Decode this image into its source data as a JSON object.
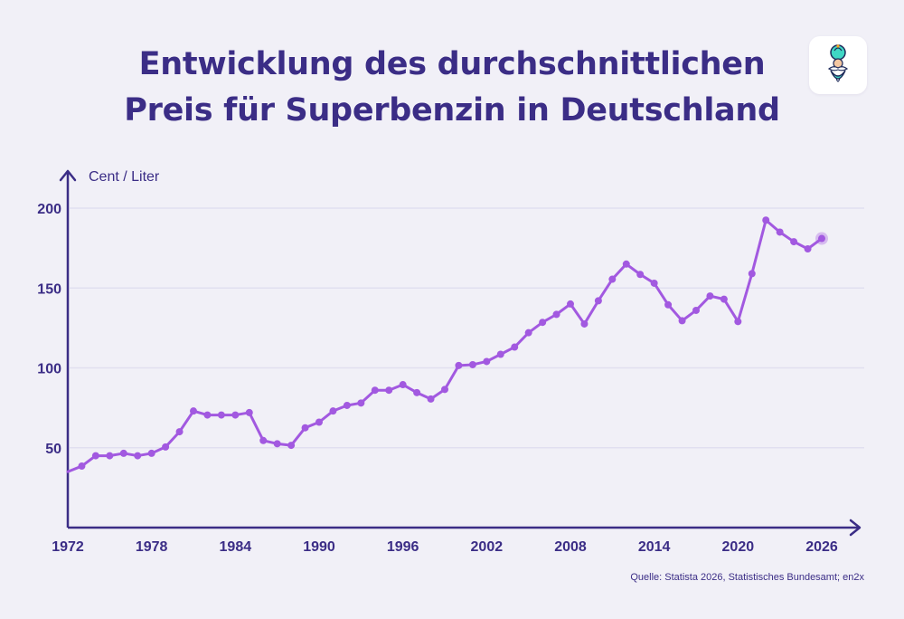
{
  "header": {
    "title_line1": "Entwicklung des durchschnittlichen",
    "title_line2": "Preis für Superbenzin in Deutschland"
  },
  "logo": {
    "icon": "genie-mascot-icon"
  },
  "source": "Quelle: Statista 2026, Statistisches Bundesamt; en2x",
  "colors": {
    "line": "#a259e0",
    "axis": "#3b2d86",
    "grid": "#e1dff0",
    "text": "#3b2d86"
  },
  "chart_data": {
    "type": "line",
    "ylabel": "Cent / Liter",
    "xlabel": "",
    "xlim": [
      1972,
      2026
    ],
    "ylim": [
      0,
      200
    ],
    "xticks": [
      "1972",
      "1978",
      "1984",
      "1990",
      "1996",
      "2002",
      "2008",
      "2014",
      "2020",
      "2026"
    ],
    "yticks": [
      "50",
      "100",
      "150",
      "200"
    ],
    "grid": true,
    "series": [
      {
        "x": [
          1972,
          1973,
          1974,
          1975,
          1976,
          1977,
          1978,
          1979,
          1980,
          1981,
          1982,
          1983,
          1984,
          1985,
          1986,
          1987,
          1988,
          1989,
          1990,
          1991,
          1992,
          1993,
          1994,
          1995,
          1996,
          1997,
          1998,
          1999,
          2000,
          2001,
          2002,
          2003,
          2004,
          2005,
          2006,
          2007,
          2008,
          2009,
          2010,
          2011,
          2012,
          2013,
          2014,
          2015,
          2016,
          2017,
          2018,
          2019,
          2020,
          2021,
          2022,
          2023,
          2024,
          2025,
          2026
        ],
        "y": [
          35,
          38.5,
          45,
          45,
          46.5,
          45,
          46.5,
          50.5,
          60,
          73,
          70.5,
          70.5,
          70.5,
          72,
          54.5,
          52.5,
          51.5,
          62.5,
          66,
          73,
          76.5,
          78,
          86,
          86,
          89.5,
          84.5,
          80.5,
          86.5,
          101.5,
          102,
          104,
          108.5,
          113,
          122,
          128.5,
          133.5,
          140,
          127.5,
          142,
          155.5,
          165,
          158.5,
          153,
          139.5,
          129.5,
          136,
          145,
          143,
          129,
          159,
          192.5,
          185,
          179,
          174.5,
          181
        ]
      }
    ]
  }
}
